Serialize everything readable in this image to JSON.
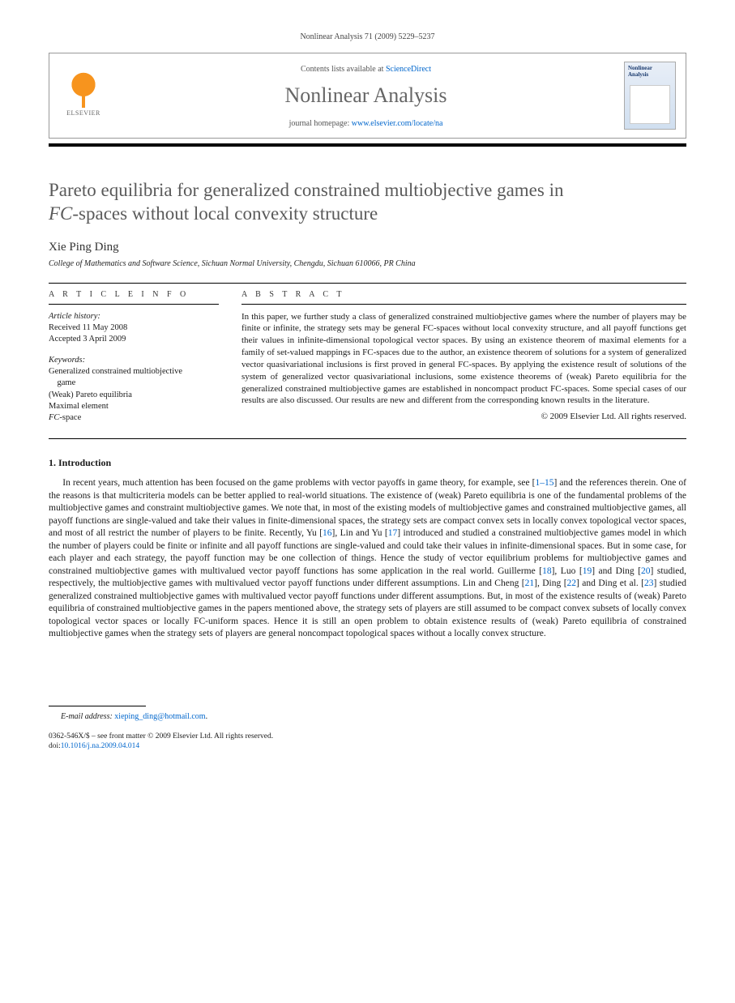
{
  "running_head": "Nonlinear Analysis 71 (2009) 5229–5237",
  "header": {
    "contents_prefix": "Contents lists available at ",
    "contents_link": "ScienceDirect",
    "journal": "Nonlinear Analysis",
    "homepage_prefix": "journal homepage: ",
    "homepage_link": "www.elsevier.com/locate/na",
    "publisher": "ELSEVIER",
    "cover_title": "Nonlinear Analysis"
  },
  "title_line1": "Pareto equilibria for generalized constrained multiobjective games in",
  "title_line2_ital": "FC",
  "title_line2_rest": "-spaces without local convexity structure",
  "author": "Xie Ping Ding",
  "affiliation": "College of Mathematics and Software Science, Sichuan Normal University, Chengdu, Sichuan 610066, PR China",
  "info_label": "A R T I C L E   I N F O",
  "abs_label": "A B S T R A C T",
  "history": {
    "hd": "Article history:",
    "received": "Received 11 May 2008",
    "accepted": "Accepted 3 April 2009"
  },
  "keywords": {
    "hd": "Keywords:",
    "k1": "Generalized constrained multiobjective",
    "k1b": "  game",
    "k2": "(Weak) Pareto equilibria",
    "k3": "Maximal element",
    "k4_ital": "FC",
    "k4_rest": "-space"
  },
  "abstract": "In this paper, we further study a class of generalized constrained multiobjective games where the number of players may be finite or infinite, the strategy sets may be general FC-spaces without local convexity structure, and all payoff functions get their values in infinite-dimensional topological vector spaces. By using an existence theorem of maximal elements for a family of set-valued mappings in FC-spaces due to the author, an existence theorem of solutions for a system of generalized vector quasivariational inclusions is first proved in general FC-spaces. By applying the existence result of solutions of the system of generalized vector quasivariational inclusions, some existence theorems of (weak) Pareto equilibria for the generalized constrained multiobjective games are established in noncompact product FC-spaces. Some special cases of our results are also discussed. Our results are new and different from the corresponding known results in the literature.",
  "copyright": "© 2009 Elsevier Ltd. All rights reserved.",
  "section1": "1.  Introduction",
  "intro": {
    "p1a": "In recent years, much attention has been focused on the game problems with vector payoffs in game theory, for example, see [",
    "p1_ref1": "1–15",
    "p1b": "] and the references therein. One of the reasons is that multicriteria models can be better applied to real-world situations. The existence of (weak) Pareto equilibria is one of the fundamental problems of the multiobjective games and constraint multiobjective games. We note that, in most of the existing models of multiobjective games and constrained multiobjective games, all payoff functions are single-valued and take their values in finite-dimensional spaces, the strategy sets are compact convex sets in locally convex topological vector spaces, and most of all restrict the number of players to be finite. Recently, Yu [",
    "p1_ref2": "16",
    "p1c": "], Lin and Yu [",
    "p1_ref3": "17",
    "p1d": "] introduced and studied a constrained multiobjective games model in which the number of players could be finite or infinite and all payoff functions are single-valued and could take their values in infinite-dimensional spaces. But in some case, for each player and each strategy, the payoff function may be one collection of things. Hence the study of vector equilibrium problems for multiobjective games and constrained multiobjective games with multivalued vector payoff functions has some application in the real world. Guillerme [",
    "p1_ref4": "18",
    "p1e": "], Luo [",
    "p1_ref5": "19",
    "p1f": "] and Ding [",
    "p1_ref6": "20",
    "p1g": "] studied, respectively, the multiobjective games with multivalued vector payoff functions under different assumptions. Lin and Cheng [",
    "p1_ref7": "21",
    "p1h": "], Ding [",
    "p1_ref8": "22",
    "p1i": "] and Ding et al. [",
    "p1_ref9": "23",
    "p1j": "] studied generalized constrained multiobjective games with multivalued vector payoff functions under different assumptions. But, in most of the existence results of (weak) Pareto equilibria of constrained multiobjective games in the papers mentioned above, the strategy sets of players are still assumed to be compact convex subsets of locally convex topological vector spaces or locally FC-uniform spaces. Hence it is still an open problem to obtain existence results of (weak) Pareto equilibria of constrained multiobjective games when the strategy sets of players are general noncompact topological spaces without a locally convex structure."
  },
  "footnote": {
    "label": "E-mail address: ",
    "email": "xieping_ding@hotmail.com",
    "period": "."
  },
  "footer": {
    "line1": "0362-546X/$ – see front matter © 2009 Elsevier Ltd. All rights reserved.",
    "doi_label": "doi:",
    "doi": "10.1016/j.na.2009.04.014"
  },
  "colors": {
    "link": "#0066cc",
    "elsevier_orange": "#f7941e",
    "title_gray": "#5a5a5a"
  }
}
